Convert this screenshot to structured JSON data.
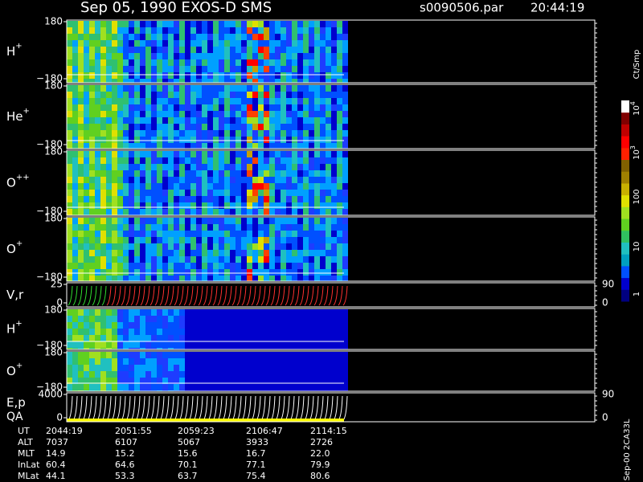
{
  "header": {
    "title": "Sep 05, 1990   EXOS-D SMS",
    "file": "s0090506.par",
    "time": "20:44:19"
  },
  "panels": [
    {
      "label": "H",
      "charge": "+",
      "ticks": [
        "180",
        "−180"
      ]
    },
    {
      "label": "He",
      "charge": "+",
      "ticks": [
        "180",
        "−180"
      ]
    },
    {
      "label": "O",
      "charge": "++",
      "ticks": [
        "180",
        "−180"
      ]
    },
    {
      "label": "O",
      "charge": "+",
      "ticks": [
        "180",
        "−180"
      ]
    },
    {
      "label": "V,r",
      "ticks": [
        "25",
        "0"
      ],
      "right_ticks": [
        "90",
        "0"
      ]
    },
    {
      "label": "H",
      "charge": "+",
      "ticks": [
        "180",
        "−180"
      ]
    },
    {
      "label": "O",
      "charge": "+",
      "ticks": [
        "180",
        "−180"
      ]
    },
    {
      "label": "E,p",
      "sublabel": "QA",
      "ticks": [
        "4000",
        "0"
      ],
      "right_ticks": [
        "90",
        "0"
      ]
    }
  ],
  "colorbar": {
    "unit": "Ct/Smp",
    "labels": [
      {
        "base": "10",
        "exp": "4"
      },
      {
        "base": "10",
        "exp": "3"
      },
      {
        "base": "100"
      },
      {
        "base": "10"
      },
      {
        "base": "1"
      }
    ]
  },
  "table": {
    "row_labels": [
      "UT",
      "ALT",
      "MLT",
      "InLat",
      "MLat"
    ],
    "rows": [
      [
        "2044:19",
        "2051:55",
        "2059:23",
        "2106:47",
        "2114:15"
      ],
      [
        "7037",
        "6107",
        "5067",
        "3933",
        "2726"
      ],
      [
        "14.9",
        "15.2",
        "15.6",
        "16.7",
        "22.0"
      ],
      [
        "60.4",
        "64.6",
        "70.1",
        "77.1",
        "79.9"
      ],
      [
        "44.1",
        "53.3",
        "63.7",
        "75.4",
        "80.6"
      ]
    ]
  },
  "footer": "Sep-00 2CA33L"
}
